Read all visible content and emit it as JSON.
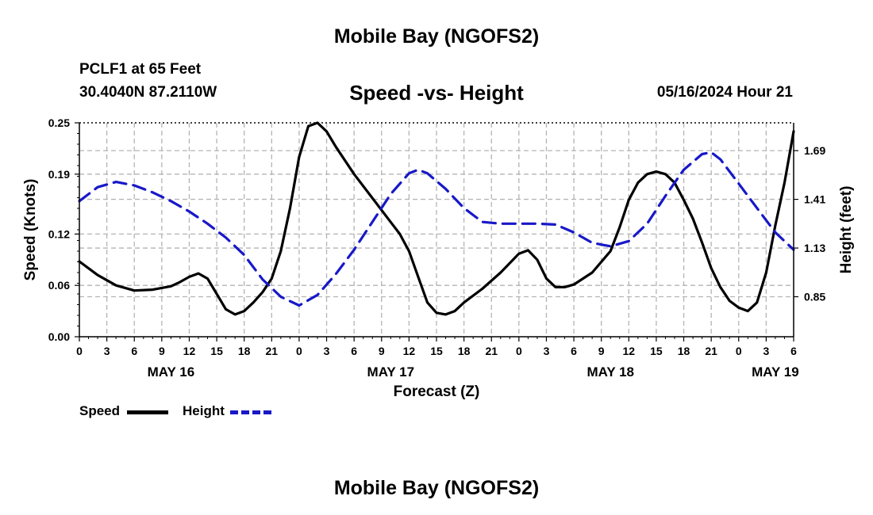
{
  "header": {
    "title": "Mobile Bay (NGOFS2)",
    "station": "PCLF1 at 65 Feet",
    "coords": "30.4040N  87.2110W",
    "subtitle": "Speed -vs- Height",
    "date": "05/16/2024 Hour 21"
  },
  "footer": {
    "title": "Mobile Bay (NGOFS2)"
  },
  "legend": {
    "speed_label": "Speed",
    "height_label": "Height"
  },
  "colors": {
    "speed": "#000000",
    "height": "#1818c8",
    "grid": "#b4b4b4"
  },
  "chart_data": {
    "type": "line",
    "title": "Speed -vs- Height",
    "xlabel": "Forecast (Z)",
    "ylabel": "Speed (Knots)",
    "y2label": "Height (feet)",
    "grid": true,
    "legend_position": "bottom-left",
    "x_unit": "hours from May 16 00Z",
    "xlim": [
      0,
      78
    ],
    "ylim": [
      0,
      0.25
    ],
    "y2lim": [
      0.62,
      1.85
    ],
    "x_ticks": [
      0,
      3,
      6,
      9,
      12,
      15,
      18,
      21,
      24,
      27,
      30,
      33,
      36,
      39,
      42,
      45,
      48,
      51,
      54,
      57,
      60,
      63,
      66,
      69,
      72,
      75,
      78
    ],
    "x_tick_labels": [
      "0",
      "3",
      "6",
      "9",
      "12",
      "15",
      "18",
      "21",
      "0",
      "3",
      "6",
      "9",
      "12",
      "15",
      "18",
      "21",
      "0",
      "3",
      "6",
      "9",
      "12",
      "15",
      "18",
      "21",
      "0",
      "3",
      "6"
    ],
    "y_ticks": [
      0,
      0.06,
      0.12,
      0.19,
      0.25
    ],
    "y_tick_labels": [
      "0.00",
      "0.06",
      "0.12",
      "0.19",
      "0.25"
    ],
    "y2_ticks": [
      0.85,
      1.13,
      1.41,
      1.69
    ],
    "y2_tick_labels": [
      "0.85",
      "1.13",
      "1.41",
      "1.69"
    ],
    "day_labels": [
      {
        "x": 10,
        "label": "MAY 16"
      },
      {
        "x": 34,
        "label": "MAY 17"
      },
      {
        "x": 58,
        "label": "MAY 18"
      },
      {
        "x": 76,
        "label": "MAY 19"
      }
    ],
    "series": [
      {
        "name": "Speed",
        "axis": "left",
        "style": "solid",
        "points": [
          [
            0,
            0.088
          ],
          [
            2,
            0.072
          ],
          [
            4,
            0.06
          ],
          [
            6,
            0.054
          ],
          [
            8,
            0.055
          ],
          [
            10,
            0.059
          ],
          [
            11,
            0.064
          ],
          [
            12,
            0.07
          ],
          [
            13,
            0.074
          ],
          [
            14,
            0.068
          ],
          [
            15,
            0.05
          ],
          [
            16,
            0.032
          ],
          [
            17,
            0.026
          ],
          [
            18,
            0.03
          ],
          [
            19,
            0.04
          ],
          [
            20,
            0.052
          ],
          [
            21,
            0.068
          ],
          [
            22,
            0.1
          ],
          [
            23,
            0.15
          ],
          [
            24,
            0.21
          ],
          [
            25,
            0.246
          ],
          [
            26,
            0.25
          ],
          [
            27,
            0.24
          ],
          [
            28,
            0.222
          ],
          [
            30,
            0.19
          ],
          [
            32,
            0.162
          ],
          [
            34,
            0.134
          ],
          [
            35,
            0.12
          ],
          [
            36,
            0.1
          ],
          [
            37,
            0.07
          ],
          [
            38,
            0.04
          ],
          [
            39,
            0.028
          ],
          [
            40,
            0.026
          ],
          [
            41,
            0.03
          ],
          [
            42,
            0.04
          ],
          [
            44,
            0.056
          ],
          [
            46,
            0.075
          ],
          [
            48,
            0.097
          ],
          [
            49,
            0.101
          ],
          [
            50,
            0.09
          ],
          [
            51,
            0.068
          ],
          [
            52,
            0.058
          ],
          [
            53,
            0.058
          ],
          [
            54,
            0.061
          ],
          [
            56,
            0.075
          ],
          [
            58,
            0.1
          ],
          [
            59,
            0.128
          ],
          [
            60,
            0.16
          ],
          [
            61,
            0.18
          ],
          [
            62,
            0.19
          ],
          [
            63,
            0.193
          ],
          [
            64,
            0.19
          ],
          [
            65,
            0.18
          ],
          [
            66,
            0.16
          ],
          [
            67,
            0.138
          ],
          [
            68,
            0.11
          ],
          [
            69,
            0.08
          ],
          [
            70,
            0.058
          ],
          [
            71,
            0.042
          ],
          [
            72,
            0.034
          ],
          [
            73,
            0.03
          ],
          [
            74,
            0.04
          ],
          [
            75,
            0.075
          ],
          [
            76,
            0.13
          ],
          [
            77,
            0.18
          ],
          [
            78,
            0.24
          ]
        ]
      },
      {
        "name": "Height",
        "axis": "right",
        "style": "dashed",
        "points": [
          [
            0,
            1.4
          ],
          [
            2,
            1.48
          ],
          [
            4,
            1.51
          ],
          [
            6,
            1.49
          ],
          [
            8,
            1.45
          ],
          [
            10,
            1.4
          ],
          [
            12,
            1.34
          ],
          [
            14,
            1.27
          ],
          [
            16,
            1.19
          ],
          [
            18,
            1.09
          ],
          [
            20,
            0.95
          ],
          [
            22,
            0.85
          ],
          [
            24,
            0.8
          ],
          [
            26,
            0.86
          ],
          [
            28,
            0.98
          ],
          [
            30,
            1.12
          ],
          [
            32,
            1.28
          ],
          [
            34,
            1.44
          ],
          [
            36,
            1.56
          ],
          [
            37,
            1.58
          ],
          [
            38,
            1.56
          ],
          [
            40,
            1.47
          ],
          [
            42,
            1.36
          ],
          [
            44,
            1.28
          ],
          [
            46,
            1.27
          ],
          [
            48,
            1.27
          ],
          [
            50,
            1.27
          ],
          [
            52,
            1.265
          ],
          [
            54,
            1.22
          ],
          [
            56,
            1.16
          ],
          [
            58,
            1.14
          ],
          [
            60,
            1.17
          ],
          [
            62,
            1.27
          ],
          [
            64,
            1.43
          ],
          [
            66,
            1.58
          ],
          [
            68,
            1.67
          ],
          [
            69,
            1.68
          ],
          [
            70,
            1.64
          ],
          [
            72,
            1.5
          ],
          [
            74,
            1.36
          ],
          [
            76,
            1.22
          ],
          [
            78,
            1.12
          ]
        ]
      }
    ]
  }
}
